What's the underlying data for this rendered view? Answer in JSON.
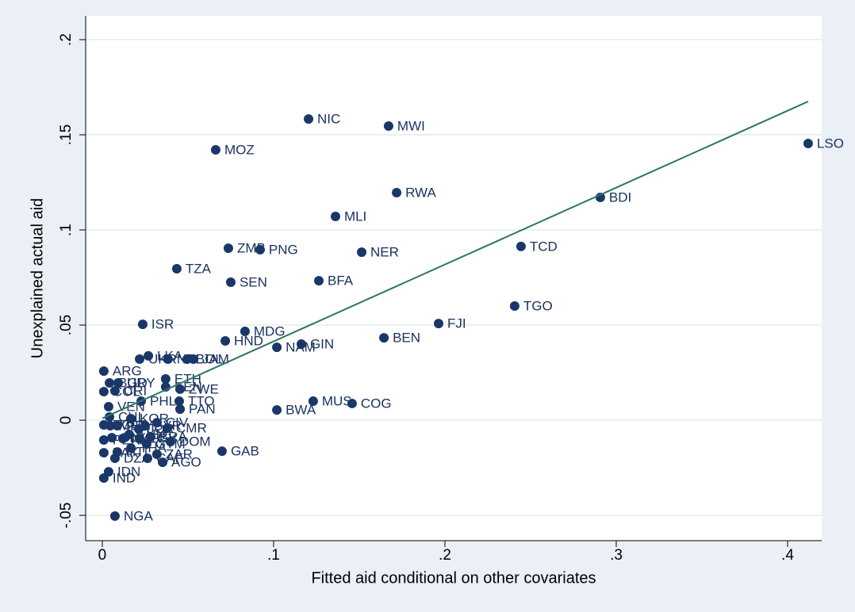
{
  "chart_data": {
    "type": "scatter",
    "x_label": "Fitted aid conditional on other covariates",
    "y_label": "Unexplained actual aid",
    "xlim": [
      -0.0097,
      0.4199
    ],
    "ylim": [
      -0.0633,
      0.2125
    ],
    "xticks": [
      0,
      {
        "value": 0.1,
        "label": ".1"
      },
      {
        "value": 0.2,
        "label": ".2"
      },
      {
        "value": 0.3,
        "label": ".3"
      },
      {
        "value": 0.4,
        "label": ".4"
      }
    ],
    "yticks": [
      {
        "value": -0.05,
        "label": "-.05"
      },
      0,
      {
        "value": 0.05,
        "label": ".05"
      },
      {
        "value": 0.1,
        "label": ".1"
      },
      {
        "value": 0.15,
        "label": ".15"
      },
      {
        "value": 0.2,
        "label": ".2"
      }
    ],
    "grid": true,
    "series": [
      {
        "color": "#1a3769",
        "labels": [
          "NIC",
          "MWI",
          "MOZ",
          "LSO",
          "RWA",
          "BDI",
          "MLI",
          "ZMB",
          "PNG",
          "NER",
          "TCD",
          "TZA",
          "SEN",
          "BFA",
          "TGO",
          "ISR",
          "FJI",
          "MDG",
          "HND",
          "BEN",
          "GIN",
          "NAM",
          "MUS",
          "COG",
          "BWA",
          "GAB",
          "LKA",
          "UKR",
          "NPL",
          "BOL",
          "JAM",
          "ETH",
          "KEN",
          "ZWE",
          "PHL",
          "TTO",
          "PAN",
          "ARG",
          "BGD",
          "URY",
          "COL",
          "CRI",
          "VEN",
          "CHL",
          "ECU",
          "MEX",
          "PRY",
          "PER",
          "SLV",
          "PAK",
          "DZA",
          "HTI",
          "IDN",
          "IND",
          "NGA",
          "MAR",
          "TUN",
          "KOR",
          "JOR",
          "SYR",
          "EGY",
          "THA",
          "GTM",
          "BRA",
          "CIV",
          "CMR",
          "ZAR",
          "CAF",
          "AGO",
          "DOM"
        ],
        "x": [
          0.1204,
          0.1671,
          0.0662,
          0.412,
          0.1718,
          0.2907,
          0.1361,
          0.0736,
          0.0921,
          0.1514,
          0.2444,
          0.0435,
          0.075,
          0.1264,
          0.2407,
          0.0236,
          0.1963,
          0.0833,
          0.0718,
          0.1644,
          0.1162,
          0.1019,
          0.1231,
          0.1458,
          0.1019,
          0.0699,
          0.0269,
          0.0218,
          0.0384,
          0.0495,
          0.0532,
          0.037,
          0.037,
          0.0454,
          0.0227,
          0.0449,
          0.0454,
          0.0009,
          0.0042,
          0.0093,
          0.0009,
          0.0074,
          0.0037,
          0.0042,
          0.0009,
          0.0046,
          0.0088,
          0.0009,
          0.0056,
          0.0009,
          0.0074,
          0.0088,
          0.0037,
          0.0009,
          0.0074,
          0.012,
          0.0157,
          0.0167,
          0.0213,
          0.025,
          0.0218,
          0.0167,
          0.0259,
          0.0282,
          0.0319,
          0.038,
          0.0319,
          0.0264,
          0.0352,
          0.0398
        ],
        "values": [
          0.1583,
          0.1546,
          0.1421,
          0.1454,
          0.1196,
          0.1171,
          0.1071,
          0.0904,
          0.0896,
          0.0883,
          0.0913,
          0.0796,
          0.0725,
          0.0733,
          0.06,
          0.0504,
          0.0508,
          0.0467,
          0.0417,
          0.0433,
          0.04,
          0.0383,
          0.01,
          0.0088,
          0.0054,
          -0.0163,
          0.0338,
          0.0321,
          0.0321,
          0.0321,
          0.0321,
          0.0217,
          0.0175,
          0.0163,
          0.01,
          0.01,
          0.0058,
          0.0258,
          0.0196,
          0.0196,
          0.015,
          0.0154,
          0.0071,
          0.0017,
          -0.0025,
          -0.0029,
          -0.0029,
          -0.0104,
          -0.0092,
          -0.0171,
          -0.02,
          -0.0167,
          -0.0271,
          -0.0304,
          -0.0504,
          -0.0096,
          -0.0075,
          0.0008,
          -0.0046,
          -0.0029,
          -0.0096,
          -0.0146,
          -0.0125,
          -0.0088,
          -0.0013,
          -0.0042,
          -0.0179,
          -0.02,
          -0.0221,
          -0.0113
        ]
      }
    ],
    "fit": {
      "color": "#2e7565",
      "x": [
        0,
        0.412
      ],
      "values": [
        0.001,
        0.1675
      ]
    }
  }
}
